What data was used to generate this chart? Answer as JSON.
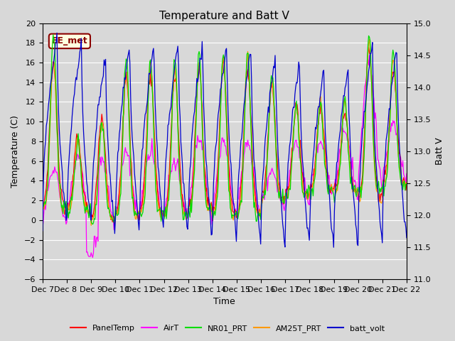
{
  "title": "Temperature and Batt V",
  "xlabel": "Time",
  "ylabel_left": "Temperature (C)",
  "ylabel_right": "Batt V",
  "ylim_left": [
    -6,
    20
  ],
  "ylim_right": [
    11.0,
    15.0
  ],
  "xtick_labels": [
    "Dec 7",
    "Dec 8 ",
    "Dec 9",
    "Dec 10",
    "Dec 11",
    "Dec 12",
    "Dec 13",
    "Dec 14",
    "Dec 15",
    "Dec 16",
    "Dec 17",
    "Dec 18",
    "Dec 19",
    "Dec 20",
    "Dec 21",
    "Dec 22"
  ],
  "annotation_text": "EE_met",
  "series_colors": {
    "PanelTemp": "#ff0000",
    "AirT": "#ff00ff",
    "NR01_PRT": "#00dd00",
    "AM25T_PRT": "#ff9900",
    "batt_volt": "#0000cc"
  },
  "background_color": "#d8d8d8",
  "axes_bg_color": "#d8d8d8",
  "grid_color": "#ffffff",
  "title_fontsize": 11,
  "label_fontsize": 9,
  "tick_fontsize": 8,
  "n_points": 480
}
